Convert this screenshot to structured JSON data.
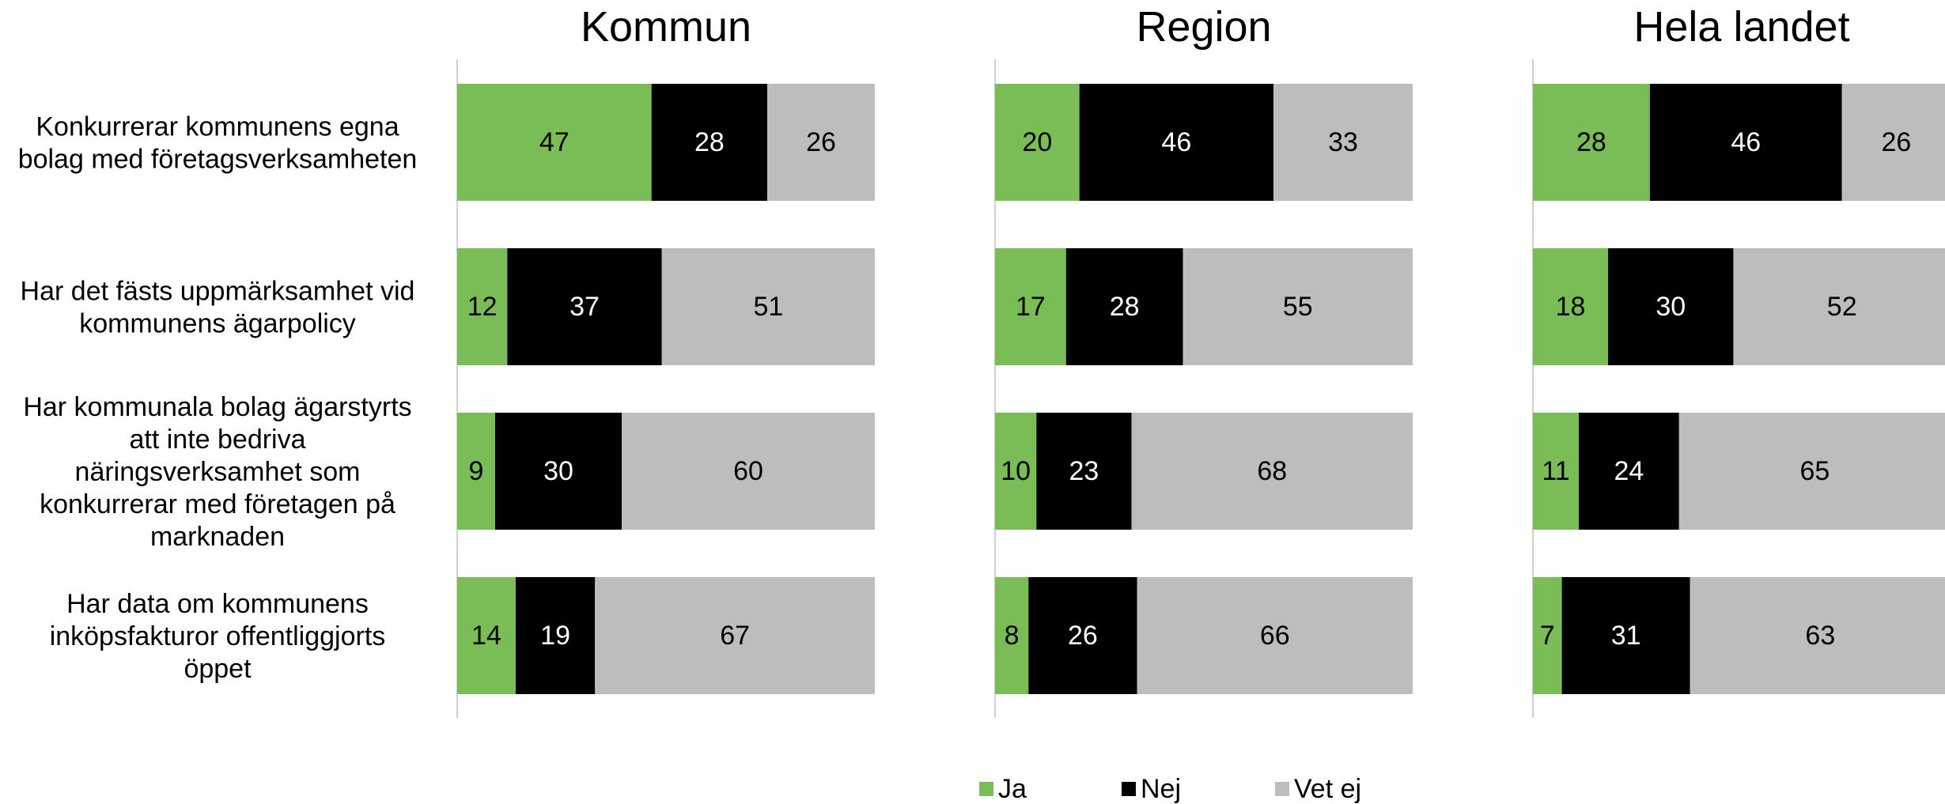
{
  "chart_data": {
    "type": "bar",
    "orientation": "horizontal",
    "stacked": "100%",
    "categories": [
      "Konkurrerar kommunens egna bolag med företagsverksamheten",
      "Har det fästs uppmärksamhet vid kommunens ägarpolicy",
      "Har kommunala bolag ägarstyrts att inte bedriva näringsverksamhet som konkurrerar med företagen på marknaden",
      "Har data om kommunens inköpsfakturor offentliggjorts öppet"
    ],
    "category_lines": [
      [
        "Konkurrerar kommunens egna",
        "bolag med företagsverksamheten"
      ],
      [
        "Har det fästs uppmärksamhet vid",
        "kommunens ägarpolicy"
      ],
      [
        "Har kommunala bolag ägarstyrts",
        "att inte bedriva",
        "näringsverksamhet som",
        "konkurrerar med företagen på",
        "marknaden"
      ],
      [
        "Har data om kommunens",
        "inköpsfakturor offentliggjorts",
        "öppet"
      ]
    ],
    "panels": [
      {
        "title": "Kommun",
        "series": [
          {
            "name": "Ja",
            "values": [
              47,
              12,
              9,
              14
            ]
          },
          {
            "name": "Nej",
            "values": [
              28,
              37,
              30,
              19
            ]
          },
          {
            "name": "Vet ej",
            "values": [
              26,
              51,
              60,
              67
            ]
          }
        ]
      },
      {
        "title": "Region",
        "series": [
          {
            "name": "Ja",
            "values": [
              20,
              17,
              10,
              8
            ]
          },
          {
            "name": "Nej",
            "values": [
              46,
              28,
              23,
              26
            ]
          },
          {
            "name": "Vet ej",
            "values": [
              33,
              55,
              68,
              66
            ]
          }
        ]
      },
      {
        "title": "Hela landet",
        "series": [
          {
            "name": "Ja",
            "values": [
              28,
              18,
              11,
              7
            ]
          },
          {
            "name": "Nej",
            "values": [
              46,
              30,
              24,
              31
            ]
          },
          {
            "name": "Vet ej",
            "values": [
              26,
              52,
              65,
              63
            ]
          }
        ]
      }
    ],
    "colors": {
      "Ja": "#7abd57",
      "Nej": "#000000",
      "Vet ej": "#bdbdbd"
    },
    "label_colors": {
      "Ja": "#000000",
      "Nej": "#ffffff",
      "Vet ej": "#000000"
    },
    "legend": {
      "position": "bottom",
      "items": [
        "Ja",
        "Nej",
        "Vet ej"
      ]
    },
    "grid": false
  }
}
